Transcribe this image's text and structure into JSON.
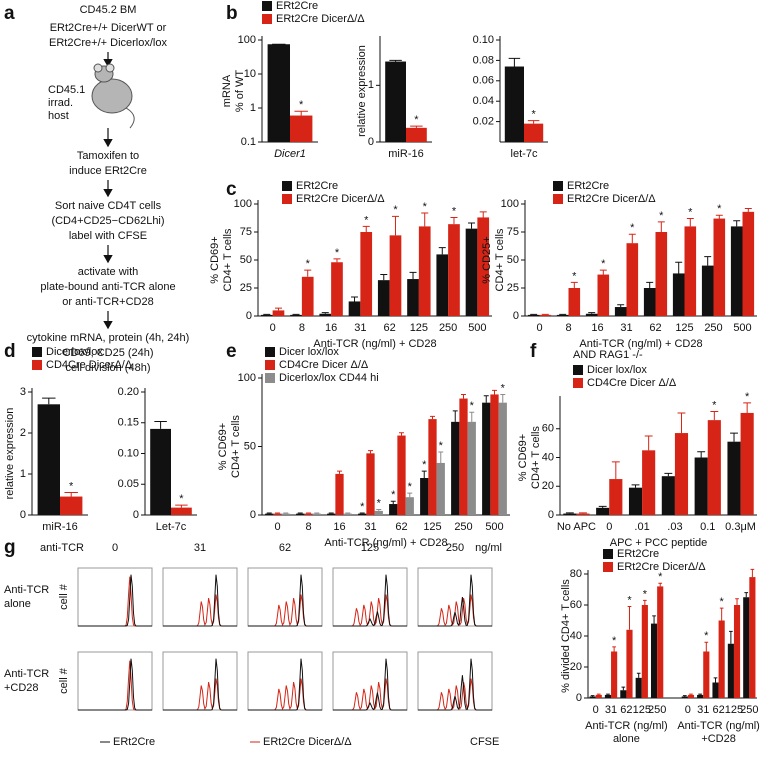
{
  "panel_labels": [
    "a",
    "b",
    "c",
    "d",
    "e",
    "f",
    "g"
  ],
  "diagram": {
    "steps": [
      "CD45.2 BM",
      "ERt2Cre+/+ DicerWT or",
      "ERt2Cre+/+ Dicerlox/lox",
      "CD45.1",
      "irrad.",
      "host",
      "Tamoxifen to",
      "induce ERt2Cre",
      "Sort naive CD4T cells",
      "(CD4+CD25−CD62Lhi)",
      "label with CFSE",
      "activate with",
      "plate-bound anti-TCR alone",
      "or anti-TCR+CD28",
      "cytokine mRNA, protein (4h, 24h)",
      "CD69, CD25 (24h)",
      "cell division (48h)"
    ]
  },
  "histograms": {
    "header": "anti-TCR",
    "doses": [
      "0",
      "31",
      "62",
      "125",
      "250"
    ],
    "unit": "ng/ml",
    "rows": [
      [
        "Anti-TCR",
        "alone"
      ],
      [
        "Anti-TCR",
        "+CD28"
      ]
    ],
    "y_label": "cell #",
    "legend": [
      "ERt2Cre",
      "ERt2Cre DicerΔ/Δ"
    ],
    "x_label": "CFSE"
  },
  "chart_data": [
    {
      "type": "bar",
      "categories": [
        "Dicer1"
      ],
      "ylabel": [
        "mRNA",
        "% of WT"
      ],
      "log": true,
      "ylim": [
        0.1,
        100
      ],
      "yticks": [
        0.1,
        1,
        10,
        100
      ],
      "star": "*",
      "series": [
        {
          "name": "ERt2Cre",
          "color": "#111111",
          "values": [
            75
          ],
          "errors": [
            0
          ],
          "starred": [
            false
          ]
        },
        {
          "name": "ERt2Cre DicerΔ/Δ",
          "color": "#d62516",
          "values": [
            0.6
          ],
          "errors": [
            0.2
          ],
          "starred": [
            true
          ]
        }
      ]
    },
    {
      "type": "bar",
      "categories": [
        "miR-16"
      ],
      "ylabel": [
        "relative expression"
      ],
      "ylim": [
        0,
        1.8
      ],
      "yticks": [
        0,
        1
      ],
      "star": "*",
      "series": [
        {
          "color": "#111111",
          "values": [
            1.42
          ],
          "errors": [
            0.02
          ],
          "starred": [
            false
          ]
        },
        {
          "color": "#d62516",
          "values": [
            0.25
          ],
          "errors": [
            0.03
          ],
          "starred": [
            true
          ]
        }
      ]
    },
    {
      "type": "bar",
      "categories": [
        "let-7c"
      ],
      "ylim": [
        0,
        0.1
      ],
      "yticks": [
        0.02,
        0.04,
        0.06,
        0.08,
        {
          "value": 0.1,
          "label": "0.10"
        }
      ],
      "star": "*",
      "series": [
        {
          "color": "#111111",
          "values": [
            0.074
          ],
          "errors": [
            0.008
          ],
          "starred": [
            false
          ]
        },
        {
          "color": "#d62516",
          "values": [
            0.018
          ],
          "errors": [
            0.003
          ],
          "starred": [
            true
          ]
        }
      ]
    },
    {
      "type": "bar",
      "categories": [
        "0",
        "8",
        "16",
        "31",
        "62",
        "125",
        "250",
        "500"
      ],
      "ylabel": [
        "% CD69+",
        "CD4+ T cells"
      ],
      "xlabel": "Anti-TCR (ng/ml) + CD28",
      "ylim": [
        0,
        100
      ],
      "yticks": [
        0,
        25,
        50,
        75,
        100
      ],
      "star": "*",
      "series": [
        {
          "name": "ERt2Cre",
          "color": "#111111",
          "values": [
            1,
            1,
            2,
            13,
            32,
            33,
            55,
            78
          ],
          "errors": [
            0.5,
            0.5,
            1,
            4,
            5,
            6,
            6,
            5
          ],
          "starred": [
            false,
            false,
            false,
            false,
            false,
            false,
            false,
            false
          ]
        },
        {
          "name": "ERt2Cre DicerΔ/Δ",
          "color": "#d62516",
          "values": [
            5,
            35,
            48,
            75,
            72,
            80,
            82,
            88
          ],
          "errors": [
            2,
            6,
            3,
            5,
            17,
            12,
            6,
            5
          ],
          "starred": [
            false,
            true,
            true,
            true,
            true,
            true,
            true,
            false
          ]
        }
      ]
    },
    {
      "type": "bar",
      "categories": [
        "0",
        "8",
        "16",
        "31",
        "62",
        "125",
        "250",
        "500"
      ],
      "ylabel": [
        "% CD25+",
        "CD4+ T cells"
      ],
      "xlabel": "Anti-TCR (ng/ml) + CD28",
      "ylim": [
        0,
        100
      ],
      "yticks": [
        0,
        25,
        50,
        75,
        100
      ],
      "star": "*",
      "series": [
        {
          "name": "ERt2Cre",
          "color": "#111111",
          "values": [
            1,
            1,
            2,
            8,
            25,
            38,
            45,
            80
          ],
          "errors": [
            0.5,
            0.5,
            1,
            2,
            5,
            10,
            8,
            5
          ],
          "starred": [
            false,
            false,
            false,
            false,
            false,
            false,
            false,
            false
          ]
        },
        {
          "name": "ERt2Cre DicerΔ/Δ",
          "color": "#d62516",
          "values": [
            1,
            25,
            37,
            65,
            75,
            80,
            87,
            93
          ],
          "errors": [
            0.5,
            5,
            4,
            8,
            9,
            7,
            3,
            3
          ],
          "starred": [
            false,
            true,
            true,
            true,
            true,
            true,
            true,
            false
          ]
        }
      ]
    },
    {
      "type": "bar",
      "categories": [
        "miR-16"
      ],
      "ylabel": [
        "relative expression"
      ],
      "ylim": [
        0,
        3
      ],
      "yticks": [
        0,
        1,
        2,
        3
      ],
      "star": "*",
      "series": [
        {
          "name": "Dicerlox/lox",
          "color": "#111111",
          "values": [
            2.7
          ],
          "errors": [
            0.15
          ],
          "starred": [
            false
          ]
        },
        {
          "name": "CD4Cre DicerΔ/Δ",
          "color": "#d62516",
          "values": [
            0.45
          ],
          "errors": [
            0.1
          ],
          "starred": [
            true
          ]
        }
      ]
    },
    {
      "type": "bar",
      "categories": [
        "Let-7c"
      ],
      "ylim": [
        0,
        0.2
      ],
      "yticks": [
        0,
        0.05,
        {
          "value": 0.1,
          "label": "0.10"
        },
        0.15,
        {
          "value": 0.2,
          "label": "0.20"
        }
      ],
      "star": "*",
      "series": [
        {
          "color": "#111111",
          "values": [
            0.14
          ],
          "errors": [
            0.012
          ],
          "starred": [
            false
          ]
        },
        {
          "color": "#d62516",
          "values": [
            0.012
          ],
          "errors": [
            0.004
          ],
          "starred": [
            true
          ]
        }
      ]
    },
    {
      "type": "bar",
      "categories": [
        "0",
        "8",
        "16",
        "31",
        "62",
        "125",
        "250",
        "500"
      ],
      "ylabel": [
        "% CD69+",
        "CD4+ T cells"
      ],
      "xlabel": "Anti-TCR (ng/ml) + CD28",
      "ylim": [
        0,
        100
      ],
      "yticks": [
        0,
        50,
        100
      ],
      "star": "*",
      "series": [
        {
          "name": "Dicer lox/lox",
          "color": "#111111",
          "values": [
            1,
            1,
            1,
            1,
            8,
            27,
            68,
            82
          ],
          "errors": [
            0.5,
            0.5,
            0.5,
            0.5,
            2,
            5,
            8,
            5
          ],
          "starred": [
            false,
            false,
            false,
            true,
            true,
            true,
            false,
            false
          ]
        },
        {
          "name": "CD4Cre Dicer Δ/Δ",
          "color": "#d62516",
          "values": [
            1,
            1,
            30,
            45,
            58,
            70,
            85,
            88
          ],
          "errors": [
            0.5,
            0.5,
            2,
            2,
            2,
            2,
            3,
            3
          ],
          "starred": [
            false,
            false,
            false,
            false,
            false,
            false,
            false,
            false
          ]
        },
        {
          "name": "Dicerlox/lox CD44 hi",
          "color": "#8c8c8c",
          "values": [
            1,
            1,
            1,
            3,
            13,
            38,
            68,
            82
          ],
          "errors": [
            0.5,
            0.5,
            0.5,
            1,
            3,
            8,
            7,
            6
          ],
          "starred": [
            false,
            false,
            false,
            true,
            true,
            true,
            true,
            true
          ]
        }
      ]
    },
    {
      "type": "bar",
      "title": "AND RAG1 -/-",
      "categories": [
        "No APC",
        "0",
        ".01",
        ".03",
        "0.1",
        "0.3μM"
      ],
      "ylabel": [
        "% CD69+",
        "CD4+ T cells"
      ],
      "xlabel": "APC + PCC peptide",
      "ylim": [
        0,
        80
      ],
      "yticks": [
        0,
        20,
        40,
        60
      ],
      "star": "*",
      "series": [
        {
          "name": "Dicer lox/lox",
          "color": "#111111",
          "values": [
            1,
            5,
            19,
            27,
            40,
            51
          ],
          "errors": [
            0.5,
            1,
            2,
            2,
            4,
            6
          ],
          "starred": [
            false,
            false,
            false,
            false,
            false,
            false
          ]
        },
        {
          "name": "CD4Cre Dicer Δ/Δ",
          "color": "#d62516",
          "values": [
            1,
            25,
            45,
            57,
            66,
            71
          ],
          "errors": [
            0.5,
            12,
            10,
            14,
            6,
            7
          ],
          "starred": [
            false,
            false,
            false,
            false,
            true,
            true
          ]
        }
      ]
    },
    {
      "type": "bar",
      "categories": [
        "0",
        "31",
        "62",
        "125",
        "250",
        "0",
        "31",
        "62",
        "125",
        "250"
      ],
      "ylabel": [
        "% divided CD4+ T cells"
      ],
      "xlabels": [
        [
          "Anti-TCR (ng/ml)",
          "alone"
        ],
        [
          "Anti-TCR (ng/ml)",
          "+CD28"
        ]
      ],
      "ylim": [
        0,
        80
      ],
      "yticks": [
        0,
        20,
        40,
        60,
        80
      ],
      "star": "*",
      "series": [
        {
          "name": "ERt2Cre",
          "color": "#111111",
          "values": [
            1,
            2,
            5,
            13,
            48,
            1,
            2,
            10,
            35,
            65
          ],
          "errors": [
            0.5,
            0.5,
            2,
            3,
            5,
            0.5,
            0.5,
            3,
            8,
            3
          ],
          "starred": [
            false,
            false,
            false,
            false,
            false,
            false,
            false,
            false,
            false,
            false
          ]
        },
        {
          "name": "ERt2Cre DicerΔ/Δ",
          "color": "#d62516",
          "values": [
            2,
            30,
            44,
            60,
            72,
            2,
            30,
            50,
            60,
            78
          ],
          "errors": [
            0.5,
            3,
            15,
            3,
            2,
            0.5,
            6,
            8,
            4,
            5
          ],
          "starred": [
            false,
            true,
            true,
            true,
            true,
            false,
            true,
            true,
            false,
            false
          ]
        }
      ]
    }
  ]
}
